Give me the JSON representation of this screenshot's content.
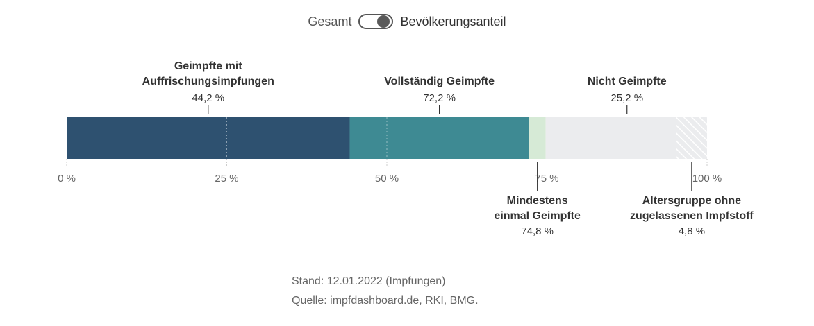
{
  "toggle": {
    "left_label": "Gesamt",
    "right_label": "Bevölkerungsanteil",
    "state": "right"
  },
  "chart_data": {
    "type": "bar",
    "orientation": "horizontal-stacked",
    "title": "",
    "xlim": [
      0,
      100
    ],
    "unit": "%",
    "ticks": [
      {
        "value": 0,
        "label": "0 %"
      },
      {
        "value": 25,
        "label": "25 %"
      },
      {
        "value": 50,
        "label": "50 %"
      },
      {
        "value": 75,
        "label": "75 %"
      },
      {
        "value": 100,
        "label": "100 %"
      }
    ],
    "segments": [
      {
        "start": 0,
        "end": 44.2,
        "color": "#2e5170"
      },
      {
        "start": 44.2,
        "end": 72.2,
        "color": "#3e8a93"
      },
      {
        "start": 72.2,
        "end": 74.8,
        "color": "#d6ead6"
      },
      {
        "start": 74.8,
        "end": 95.2,
        "color": "#ebecee"
      },
      {
        "start": 95.2,
        "end": 100,
        "color": "#ebecee",
        "pattern": "hatch"
      }
    ],
    "annotations_top": [
      {
        "lines": [
          "Geimpfte mit",
          "Auffrischungsimpfungen"
        ],
        "value_label": "44,2 %",
        "value": 44.2,
        "anchor": 22.1
      },
      {
        "lines": [
          "Vollständig Geimpfte"
        ],
        "value_label": "72,2 %",
        "value": 72.2,
        "anchor": 58.2
      },
      {
        "lines": [
          "Nicht Geimpfte"
        ],
        "value_label": "25,2 %",
        "value": 25.2,
        "anchor": 87.5
      }
    ],
    "annotations_bottom": [
      {
        "lines": [
          "Mindestens",
          "einmal Geimpfte"
        ],
        "value_label": "74,8 %",
        "value": 74.8,
        "anchor": 73.5
      },
      {
        "lines": [
          "Altersgruppe ohne",
          "zugelassenen Impfstoff"
        ],
        "value_label": "4,8 %",
        "value": 4.8,
        "anchor": 97.6
      }
    ]
  },
  "footer": {
    "stand": "Stand: 12.01.2022 (Impfungen)",
    "quelle": "Quelle: impfdashboard.de, RKI, BMG."
  }
}
